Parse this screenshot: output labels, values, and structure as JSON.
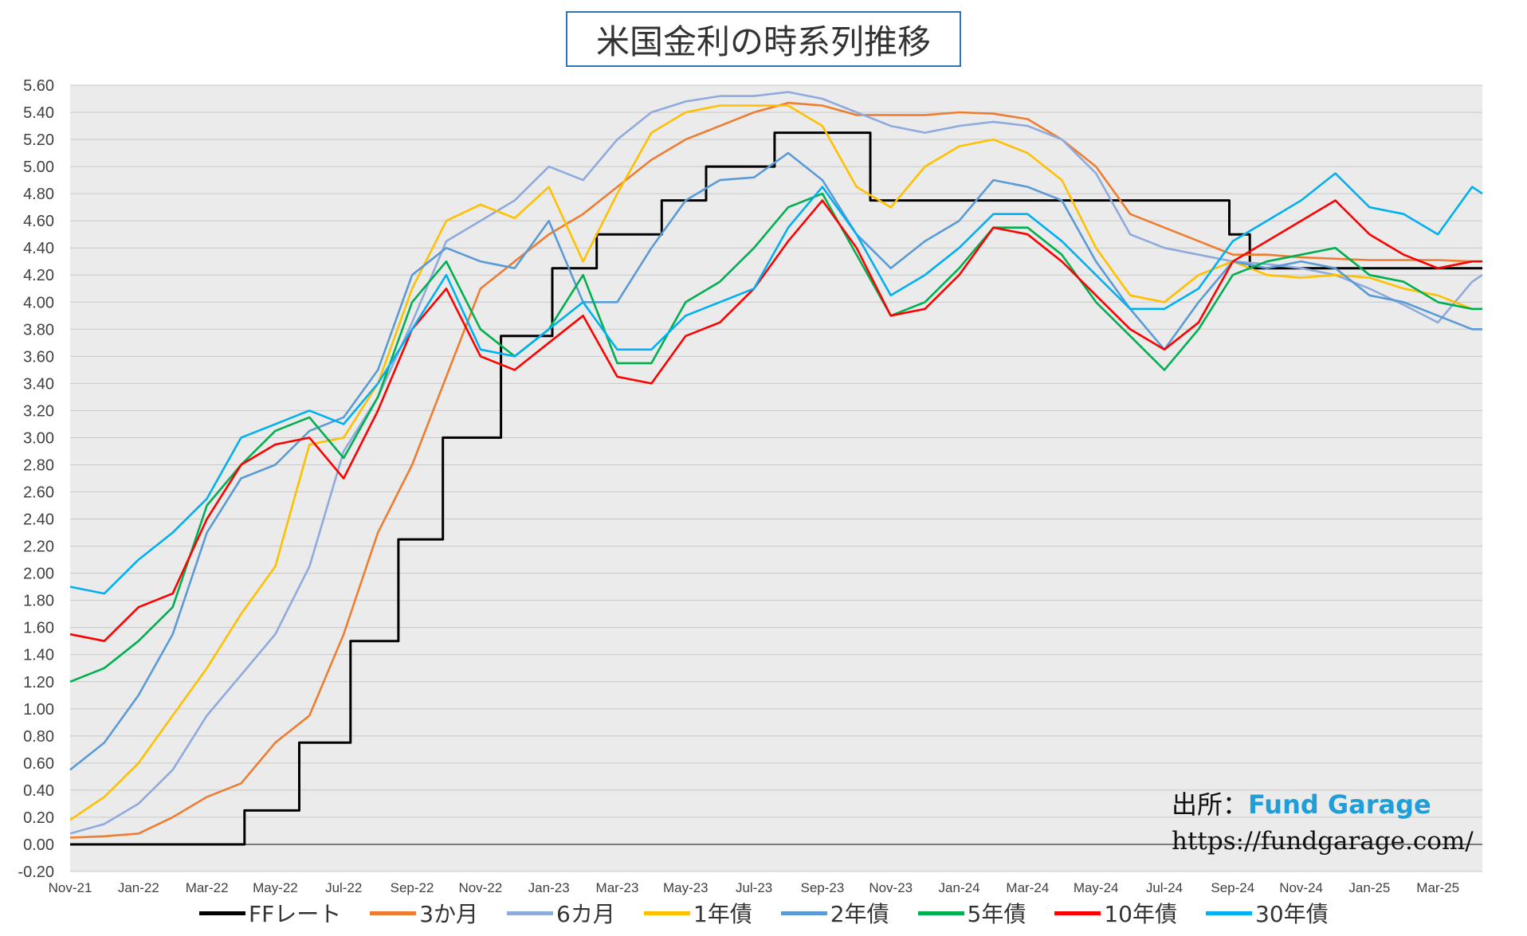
{
  "title": "米国金利の時系列推移",
  "source": {
    "label": "出所：",
    "name": "Fund Garage",
    "url": "https://fundgarage.com/"
  },
  "chart_data": {
    "type": "line",
    "ylim": [
      -0.2,
      5.6
    ],
    "y_ticks": [
      "5.60",
      "5.40",
      "5.20",
      "5.00",
      "4.80",
      "4.60",
      "4.40",
      "4.20",
      "4.00",
      "3.80",
      "3.60",
      "3.40",
      "3.20",
      "3.00",
      "2.80",
      "2.60",
      "2.40",
      "2.20",
      "2.00",
      "1.80",
      "1.60",
      "1.40",
      "1.20",
      "1.00",
      "0.80",
      "0.60",
      "0.40",
      "0.20",
      "0.00",
      "-0.20"
    ],
    "x_ticks": [
      "Nov-21",
      "Jan-22",
      "Mar-22",
      "May-22",
      "Jul-22",
      "Sep-22",
      "Nov-22",
      "Jan-23",
      "Mar-23",
      "May-23",
      "Jul-23",
      "Sep-23",
      "Nov-23",
      "Jan-24",
      "Mar-24",
      "May-24",
      "Jul-24",
      "Sep-24",
      "Nov-24",
      "Jan-25",
      "Mar-25"
    ],
    "grid": true,
    "legend_position": "bottom",
    "series": [
      {
        "name": "FFレート",
        "color": "#000000",
        "x": [
          0,
          5.1,
          5.1,
          6.7,
          6.7,
          8.2,
          8.2,
          9.6,
          9.6,
          10.9,
          10.9,
          12.6,
          12.6,
          14.1,
          14.1,
          15.4,
          15.4,
          17.3,
          17.3,
          18.6,
          18.6,
          20.6,
          20.6,
          23.4,
          23.4,
          33.9,
          33.9,
          34.5,
          34.5,
          36.0,
          36.0,
          37.8,
          37.8,
          38.6,
          38.6,
          41.3
        ],
        "values": [
          0.0,
          0.0,
          0.25,
          0.25,
          0.75,
          0.75,
          1.5,
          1.5,
          2.25,
          2.25,
          3.0,
          3.0,
          3.75,
          3.75,
          4.25,
          4.25,
          4.5,
          4.5,
          4.75,
          4.75,
          5.0,
          5.0,
          5.25,
          5.25,
          4.75,
          4.75,
          4.5,
          4.5,
          4.25,
          4.25,
          4.25,
          4.25,
          4.25,
          4.25,
          4.25,
          4.25
        ]
      },
      {
        "name": "3か月",
        "color": "#ed7d31",
        "x": [
          0,
          1,
          2,
          3,
          4,
          5,
          6,
          7,
          8,
          9,
          10,
          11,
          12,
          13,
          14,
          15,
          16,
          17,
          18,
          19,
          20,
          21,
          22,
          23,
          24,
          25,
          26,
          27,
          28,
          29,
          30,
          31,
          32,
          33,
          34,
          35,
          36,
          37,
          38,
          39,
          40,
          41,
          41.3
        ],
        "values": [
          0.05,
          0.06,
          0.08,
          0.2,
          0.35,
          0.45,
          0.75,
          0.95,
          1.55,
          2.3,
          2.8,
          3.45,
          4.1,
          4.3,
          4.5,
          4.65,
          4.85,
          5.05,
          5.2,
          5.3,
          5.4,
          5.47,
          5.45,
          5.38,
          5.38,
          5.38,
          5.4,
          5.39,
          5.35,
          5.2,
          5.0,
          4.65,
          4.55,
          4.45,
          4.35,
          4.35,
          4.33,
          4.32,
          4.31,
          4.31,
          4.31,
          4.3,
          4.3
        ]
      },
      {
        "name": "6カ月",
        "color": "#8faadc",
        "x": [
          0,
          1,
          2,
          3,
          4,
          5,
          6,
          7,
          8,
          9,
          10,
          11,
          12,
          13,
          14,
          15,
          16,
          17,
          18,
          19,
          20,
          21,
          22,
          23,
          24,
          25,
          26,
          27,
          28,
          29,
          30,
          31,
          32,
          33,
          34,
          35,
          36,
          37,
          38,
          39,
          40,
          41,
          41.3
        ],
        "values": [
          0.08,
          0.15,
          0.3,
          0.55,
          0.95,
          1.25,
          1.55,
          2.05,
          2.9,
          3.3,
          3.85,
          4.45,
          4.6,
          4.75,
          5.0,
          4.9,
          5.2,
          5.4,
          5.48,
          5.52,
          5.52,
          5.55,
          5.5,
          5.4,
          5.3,
          5.25,
          5.3,
          5.33,
          5.3,
          5.2,
          4.95,
          4.5,
          4.4,
          4.35,
          4.3,
          4.28,
          4.25,
          4.2,
          4.1,
          3.98,
          3.85,
          4.15,
          4.2
        ]
      },
      {
        "name": "1年債",
        "color": "#ffc000",
        "x": [
          0,
          1,
          2,
          3,
          4,
          5,
          6,
          7,
          8,
          9,
          10,
          11,
          12,
          13,
          14,
          15,
          16,
          17,
          18,
          19,
          20,
          21,
          22,
          23,
          24,
          25,
          26,
          27,
          28,
          29,
          30,
          31,
          32,
          33,
          34,
          35,
          36,
          37,
          38,
          39,
          40,
          41,
          41.3
        ],
        "values": [
          0.18,
          0.35,
          0.6,
          0.95,
          1.3,
          1.7,
          2.05,
          2.95,
          3.0,
          3.4,
          4.1,
          4.6,
          4.72,
          4.62,
          4.85,
          4.3,
          4.8,
          5.25,
          5.4,
          5.45,
          5.45,
          5.45,
          5.3,
          4.85,
          4.7,
          5.0,
          5.15,
          5.2,
          5.1,
          4.9,
          4.4,
          4.05,
          4.0,
          4.2,
          4.3,
          4.2,
          4.18,
          4.2,
          4.18,
          4.1,
          4.05,
          3.95,
          3.95
        ]
      },
      {
        "name": "2年債",
        "color": "#5b9bd5",
        "x": [
          0,
          1,
          2,
          3,
          4,
          5,
          6,
          7,
          8,
          9,
          10,
          11,
          12,
          13,
          14,
          15,
          16,
          17,
          18,
          19,
          20,
          21,
          22,
          23,
          24,
          25,
          26,
          27,
          28,
          29,
          30,
          31,
          32,
          33,
          34,
          35,
          36,
          37,
          38,
          39,
          40,
          41,
          41.3
        ],
        "values": [
          0.55,
          0.75,
          1.1,
          1.55,
          2.3,
          2.7,
          2.8,
          3.05,
          3.15,
          3.5,
          4.2,
          4.4,
          4.3,
          4.25,
          4.6,
          4.0,
          4.0,
          4.4,
          4.75,
          4.9,
          4.92,
          5.1,
          4.9,
          4.5,
          4.25,
          4.45,
          4.6,
          4.9,
          4.85,
          4.75,
          4.3,
          3.95,
          3.65,
          4.0,
          4.3,
          4.25,
          4.3,
          4.25,
          4.05,
          4.0,
          3.9,
          3.8,
          3.8
        ]
      },
      {
        "name": "5年債",
        "color": "#00b050",
        "x": [
          0,
          1,
          2,
          3,
          4,
          5,
          6,
          7,
          8,
          9,
          10,
          11,
          12,
          13,
          14,
          15,
          16,
          17,
          18,
          19,
          20,
          21,
          22,
          23,
          24,
          25,
          26,
          27,
          28,
          29,
          30,
          31,
          32,
          33,
          34,
          35,
          36,
          37,
          38,
          39,
          40,
          41,
          41.3
        ],
        "values": [
          1.2,
          1.3,
          1.5,
          1.75,
          2.5,
          2.8,
          3.05,
          3.15,
          2.85,
          3.3,
          4.0,
          4.3,
          3.8,
          3.6,
          3.8,
          4.2,
          3.55,
          3.55,
          4.0,
          4.15,
          4.4,
          4.7,
          4.8,
          4.35,
          3.9,
          4.0,
          4.25,
          4.55,
          4.55,
          4.35,
          4.0,
          3.75,
          3.5,
          3.8,
          4.2,
          4.3,
          4.35,
          4.4,
          4.2,
          4.15,
          4.0,
          3.95,
          3.95
        ]
      },
      {
        "name": "10年債",
        "color": "#ff0000",
        "x": [
          0,
          1,
          2,
          3,
          4,
          5,
          6,
          7,
          8,
          9,
          10,
          11,
          12,
          13,
          14,
          15,
          16,
          17,
          18,
          19,
          20,
          21,
          22,
          23,
          24,
          25,
          26,
          27,
          28,
          29,
          30,
          31,
          32,
          33,
          34,
          35,
          36,
          37,
          38,
          39,
          40,
          41,
          41.3
        ],
        "values": [
          1.55,
          1.5,
          1.75,
          1.85,
          2.4,
          2.8,
          2.95,
          3.0,
          2.7,
          3.2,
          3.8,
          4.1,
          3.6,
          3.5,
          3.7,
          3.9,
          3.45,
          3.4,
          3.75,
          3.85,
          4.1,
          4.45,
          4.75,
          4.4,
          3.9,
          3.95,
          4.2,
          4.55,
          4.5,
          4.3,
          4.05,
          3.8,
          3.65,
          3.85,
          4.3,
          4.45,
          4.6,
          4.75,
          4.5,
          4.35,
          4.25,
          4.3,
          4.3
        ]
      },
      {
        "name": "30年債",
        "color": "#00b0f0",
        "x": [
          0,
          1,
          2,
          3,
          4,
          5,
          6,
          7,
          8,
          9,
          10,
          11,
          12,
          13,
          14,
          15,
          16,
          17,
          18,
          19,
          20,
          21,
          22,
          23,
          24,
          25,
          26,
          27,
          28,
          29,
          30,
          31,
          32,
          33,
          34,
          35,
          36,
          37,
          38,
          39,
          40,
          41,
          41.3
        ],
        "values": [
          1.9,
          1.85,
          2.1,
          2.3,
          2.55,
          3.0,
          3.1,
          3.2,
          3.1,
          3.4,
          3.8,
          4.2,
          3.65,
          3.6,
          3.8,
          4.0,
          3.65,
          3.65,
          3.9,
          4.0,
          4.1,
          4.55,
          4.85,
          4.5,
          4.05,
          4.2,
          4.4,
          4.65,
          4.65,
          4.45,
          4.2,
          3.95,
          3.95,
          4.1,
          4.45,
          4.6,
          4.75,
          4.95,
          4.7,
          4.65,
          4.5,
          4.85,
          4.8
        ]
      }
    ]
  }
}
